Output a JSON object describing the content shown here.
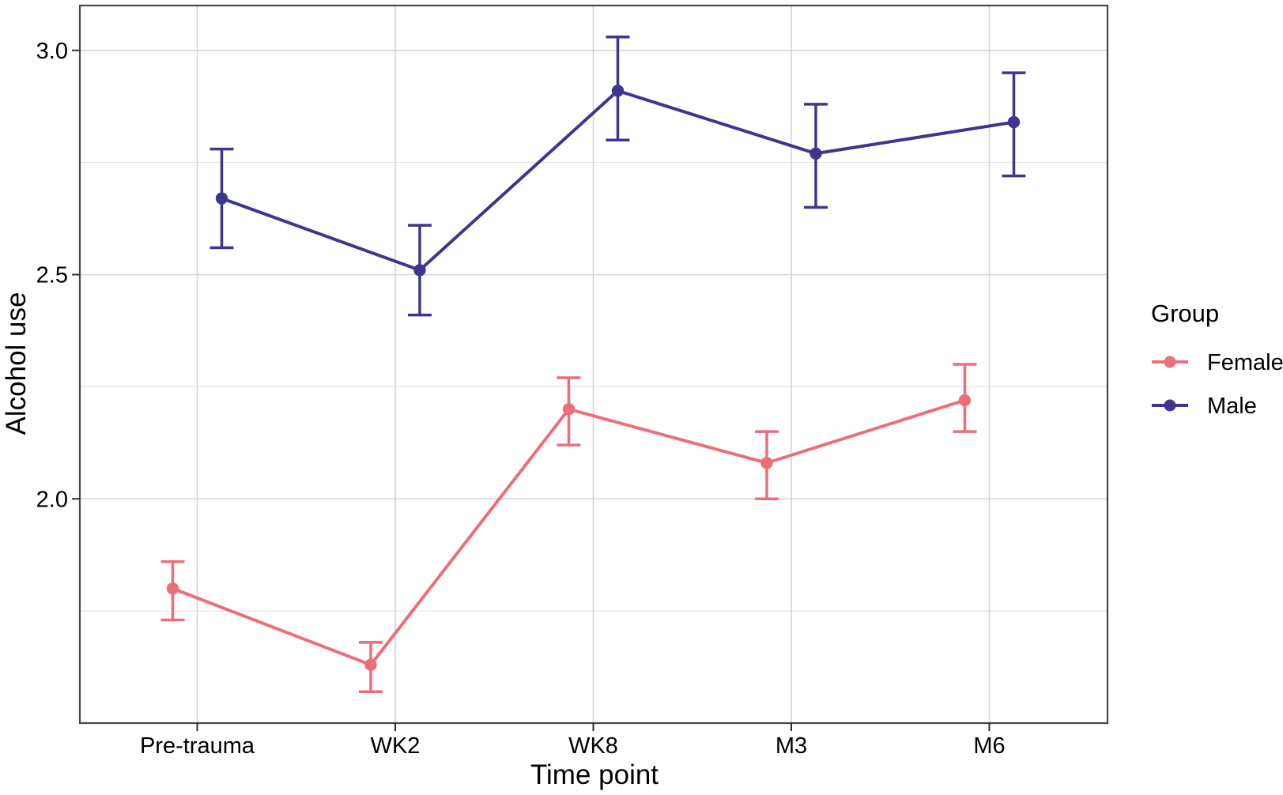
{
  "chart_data": {
    "type": "line",
    "title": "",
    "xlabel": "Time point",
    "ylabel": "Alcohol use",
    "categories": [
      "Pre-trauma",
      "WK2",
      "WK8",
      "M3",
      "M6"
    ],
    "series": [
      {
        "name": "Female",
        "color": "#ec6e7a",
        "values": [
          1.8,
          1.63,
          2.2,
          2.08,
          2.22
        ],
        "ci_low": [
          1.73,
          1.57,
          2.12,
          2.0,
          2.15
        ],
        "ci_high": [
          1.86,
          1.68,
          2.27,
          2.15,
          2.3
        ]
      },
      {
        "name": "Male",
        "color": "#3d3691",
        "values": [
          2.67,
          2.51,
          2.91,
          2.77,
          2.84
        ],
        "ci_low": [
          2.56,
          2.41,
          2.8,
          2.65,
          2.72
        ],
        "ci_high": [
          2.78,
          2.61,
          3.03,
          2.88,
          2.95
        ]
      }
    ],
    "ylim": [
      1.5,
      3.1
    ],
    "yticks_major": [
      2.0,
      2.5,
      3.0
    ],
    "ytick_labels": [
      "2.0",
      "2.5",
      "3.0"
    ],
    "yticks_minor": [
      1.75,
      2.25,
      2.75
    ],
    "error_bars": true,
    "grid": true,
    "legend_title": "Group",
    "legend_position": "right"
  },
  "colors": {
    "background": "#ffffff",
    "grid_major": "#d4d4d4",
    "grid_minor": "#e4e4e4",
    "panel_border": "#474747",
    "tick_mark": "#2e2e2e",
    "text": "#000000"
  }
}
